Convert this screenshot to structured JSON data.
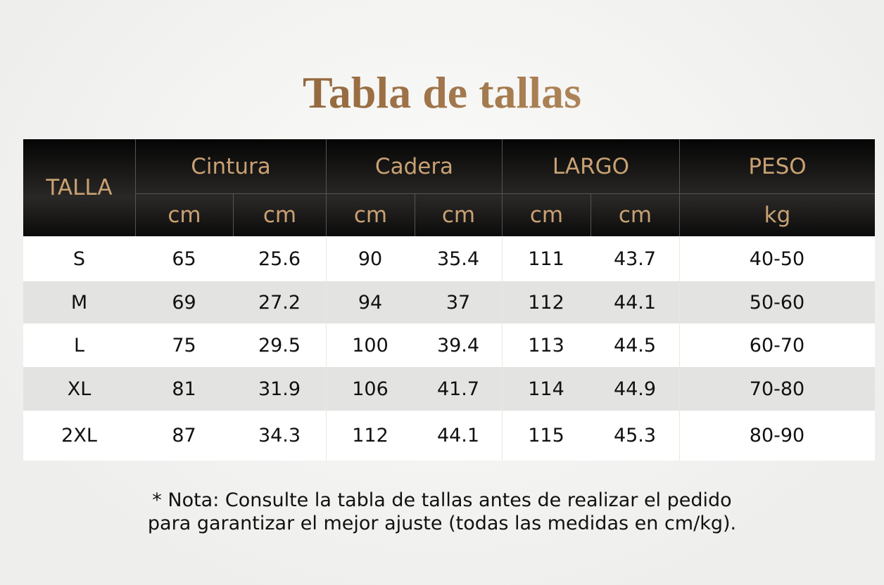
{
  "title": "Tabla de tallas",
  "table": {
    "size_header": "TALLA",
    "groups": [
      "Cintura",
      "Cadera",
      "LARGO",
      "PESO"
    ],
    "units": [
      "cm",
      "cm",
      "cm",
      "cm",
      "cm",
      "cm",
      "kg"
    ],
    "rows": [
      [
        "S",
        "65",
        "25.6",
        "90",
        "35.4",
        "111",
        "43.7",
        "40-50"
      ],
      [
        "M",
        "69",
        "27.2",
        "94",
        "37",
        "112",
        "44.1",
        "50-60"
      ],
      [
        "L",
        "75",
        "29.5",
        "100",
        "39.4",
        "113",
        "44.5",
        "60-70"
      ],
      [
        "XL",
        "81",
        "31.9",
        "106",
        "41.7",
        "114",
        "44.9",
        "70-80"
      ],
      [
        "2XL",
        "87",
        "34.3",
        "112",
        "44.1",
        "115",
        "45.3",
        "80-90"
      ]
    ]
  },
  "note": [
    "* Nota: Consulte la tabla de tallas antes de realizar el pedido",
    "para garantizar el mejor ajuste (todas las medidas en cm/kg)."
  ]
}
